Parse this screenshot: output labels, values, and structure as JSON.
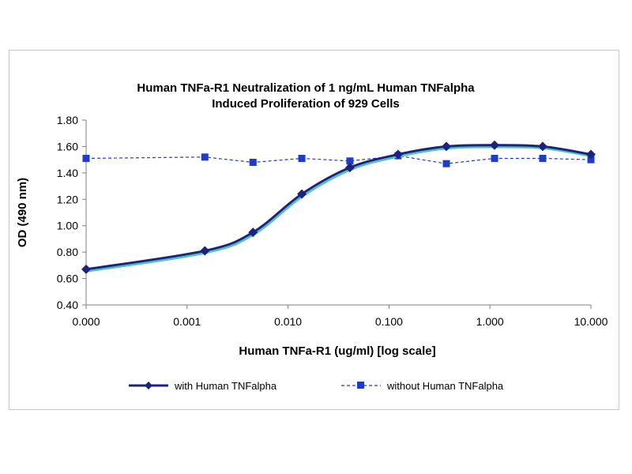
{
  "chart_data": {
    "type": "line",
    "title_lines": [
      "Human TNFa-R1 Neutralization of 1 ng/mL Human TNFalpha",
      "Induced Proliferation of 929 Cells"
    ],
    "xlabel": "Human TNFa-R1 (ug/ml) [log scale]",
    "ylabel": "OD (490 nm)",
    "x_scale": "log",
    "xlim": [
      0.0001,
      10
    ],
    "ylim": [
      0.4,
      1.8
    ],
    "x_ticks": [
      0.0001,
      0.001,
      0.01,
      0.1,
      1,
      10
    ],
    "x_tick_labels": [
      "0.000",
      "0.001",
      "0.010",
      "0.100",
      "1.000",
      "10.000"
    ],
    "y_ticks": [
      0.4,
      0.6,
      0.8,
      1.0,
      1.2,
      1.4,
      1.6,
      1.8
    ],
    "y_tick_labels": [
      "0.40",
      "0.60",
      "0.80",
      "1.00",
      "1.20",
      "1.40",
      "1.60",
      "1.80"
    ],
    "grid": false,
    "legend_position": "bottom",
    "x": [
      0.0001,
      0.0015,
      0.0045,
      0.0137,
      0.041,
      0.123,
      0.37,
      1.11,
      3.33,
      10
    ],
    "series": [
      {
        "name": "with Human TNFalpha",
        "color": "#1a237e",
        "marker": "diamond",
        "line_style": "solid",
        "values": [
          0.67,
          0.81,
          0.95,
          1.24,
          1.44,
          1.54,
          1.6,
          1.61,
          1.6,
          1.54
        ]
      },
      {
        "name": "without Human TNFalpha",
        "color": "#1e3ccc",
        "marker": "square",
        "line_style": "dashed",
        "values": [
          1.51,
          1.52,
          1.48,
          1.51,
          1.49,
          1.53,
          1.47,
          1.51,
          1.51,
          1.5
        ]
      }
    ]
  }
}
